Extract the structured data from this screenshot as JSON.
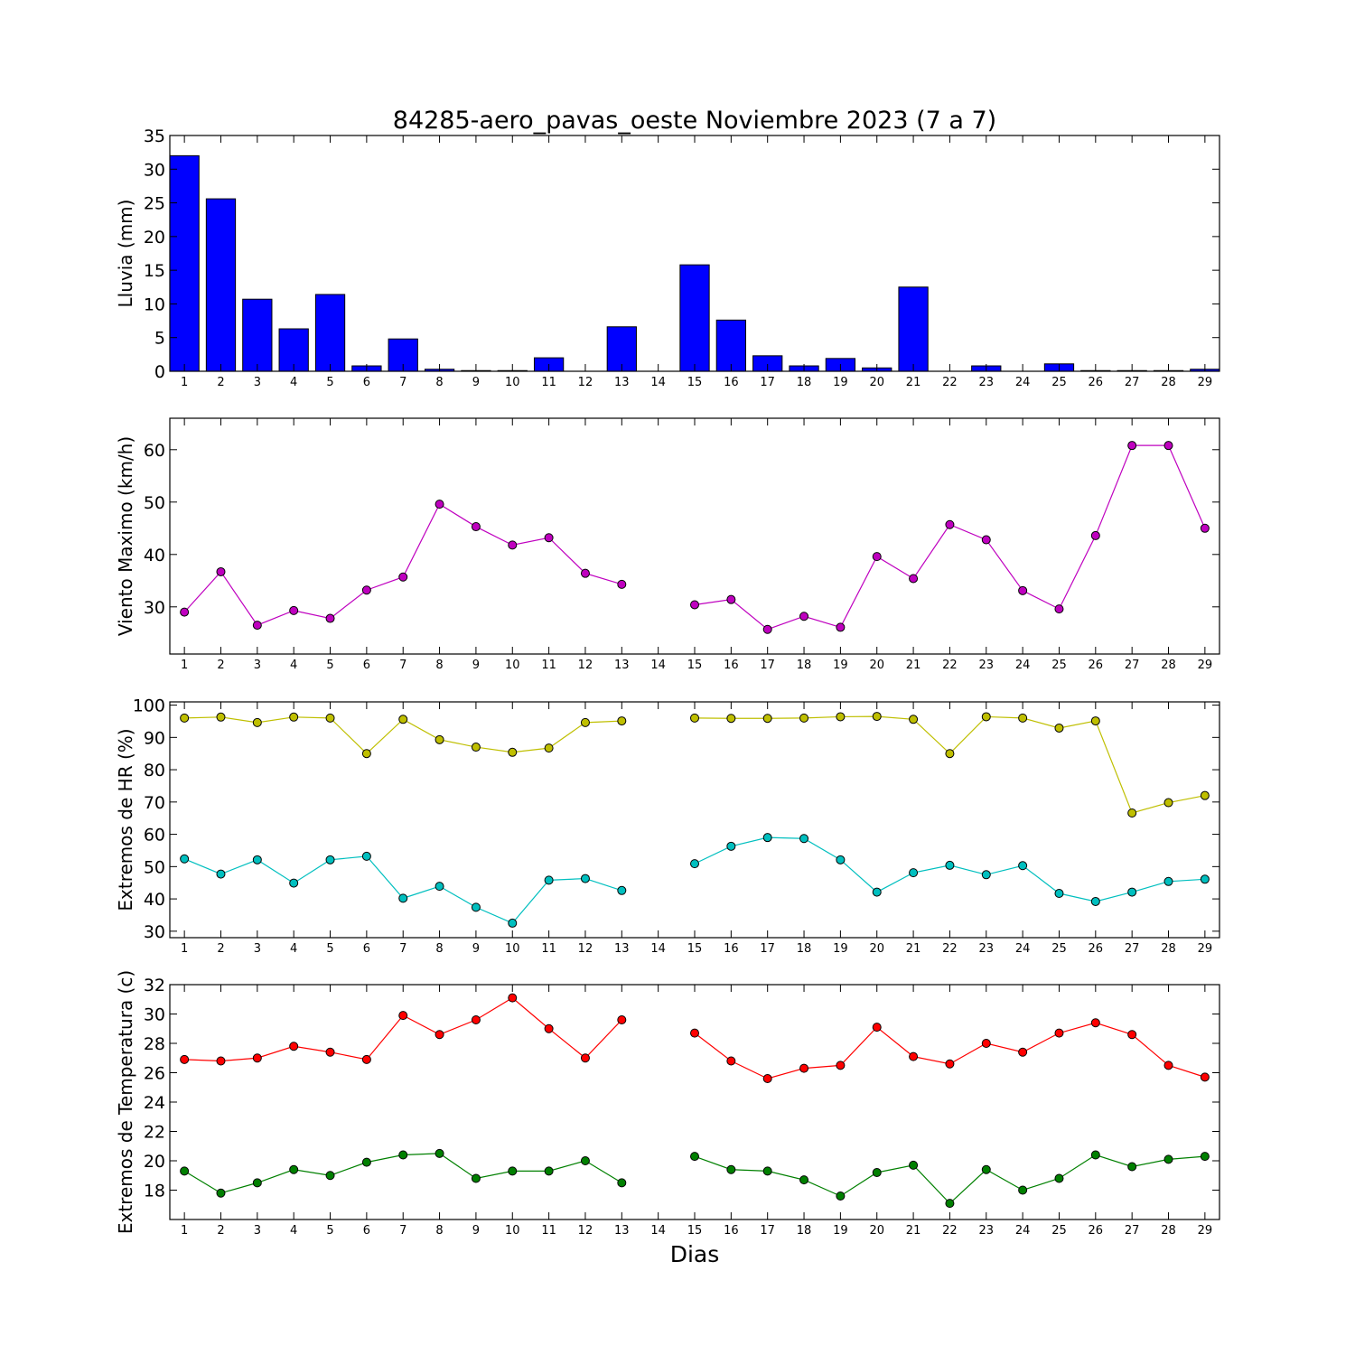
{
  "title": "84285-aero_pavas_oeste Noviembre 2023  (7 a 7)",
  "xlabel": "Dias",
  "days": [
    1,
    2,
    3,
    4,
    5,
    6,
    7,
    8,
    9,
    10,
    11,
    12,
    13,
    14,
    15,
    16,
    17,
    18,
    19,
    20,
    21,
    22,
    23,
    24,
    25,
    26,
    27,
    28,
    29
  ],
  "chart_data": [
    {
      "type": "bar",
      "ylabel": "Lluvia (mm)",
      "ylim": [
        0,
        35
      ],
      "yticks": [
        0,
        5,
        10,
        15,
        20,
        25,
        30,
        35
      ],
      "grid": false,
      "categories": [
        1,
        2,
        3,
        4,
        5,
        6,
        7,
        8,
        9,
        10,
        11,
        12,
        13,
        14,
        15,
        16,
        17,
        18,
        19,
        20,
        21,
        22,
        23,
        24,
        25,
        26,
        27,
        28,
        29
      ],
      "series": [
        {
          "color": "#0000ff",
          "values": [
            32.0,
            25.6,
            10.7,
            6.3,
            11.4,
            0.8,
            4.8,
            0.3,
            0.1,
            0.1,
            2.0,
            0.0,
            6.6,
            null,
            15.8,
            7.6,
            2.3,
            0.8,
            1.9,
            0.5,
            12.5,
            0.0,
            0.8,
            0.0,
            1.1,
            0.1,
            0.1,
            0.1,
            0.3
          ]
        }
      ]
    },
    {
      "type": "line",
      "ylabel": "Viento Maximo (km/h)",
      "ylim": [
        21,
        66
      ],
      "yticks": [
        30,
        40,
        50,
        60
      ],
      "grid": false,
      "x": [
        1,
        2,
        3,
        4,
        5,
        6,
        7,
        8,
        9,
        10,
        11,
        12,
        13,
        14,
        15,
        16,
        17,
        18,
        19,
        20,
        21,
        22,
        23,
        24,
        25,
        26,
        27,
        28,
        29
      ],
      "series": [
        {
          "color": "#bf00bf",
          "values": [
            29.0,
            36.7,
            26.5,
            29.3,
            27.8,
            33.2,
            35.7,
            49.6,
            45.3,
            41.8,
            43.2,
            36.4,
            34.3,
            null,
            30.4,
            31.4,
            25.7,
            28.2,
            26.1,
            39.6,
            35.4,
            45.7,
            42.8,
            33.1,
            29.6,
            43.6,
            60.8,
            60.8,
            45.0
          ]
        }
      ]
    },
    {
      "type": "line",
      "ylabel": "Extremos de HR (%)",
      "ylim": [
        28,
        101
      ],
      "yticks": [
        30,
        40,
        50,
        60,
        70,
        80,
        90,
        100
      ],
      "grid": false,
      "x": [
        1,
        2,
        3,
        4,
        5,
        6,
        7,
        8,
        9,
        10,
        11,
        12,
        13,
        14,
        15,
        16,
        17,
        18,
        19,
        20,
        21,
        22,
        23,
        24,
        25,
        26,
        27,
        28,
        29
      ],
      "series": [
        {
          "color": "#bfbf00",
          "values": [
            96.0,
            96.3,
            94.6,
            96.3,
            96.0,
            85.0,
            95.6,
            89.3,
            87.0,
            85.4,
            86.7,
            94.6,
            95.1,
            null,
            96.0,
            95.9,
            95.9,
            96.0,
            96.4,
            96.5,
            95.6,
            85.0,
            96.4,
            96.0,
            92.9,
            95.1,
            66.6,
            69.8,
            72.0
          ]
        },
        {
          "color": "#00bfbf",
          "values": [
            52.4,
            47.7,
            52.1,
            44.9,
            52.1,
            53.2,
            40.2,
            43.9,
            37.4,
            32.5,
            45.8,
            46.3,
            42.6,
            null,
            50.9,
            56.3,
            59.0,
            58.7,
            52.1,
            42.1,
            48.1,
            50.4,
            47.5,
            50.3,
            41.7,
            39.2,
            42.1,
            45.4,
            46.1
          ]
        }
      ]
    },
    {
      "type": "line",
      "ylabel": "Extremos de Temperatura (c)",
      "ylim": [
        16,
        32
      ],
      "yticks": [
        18,
        20,
        22,
        24,
        26,
        28,
        30,
        32
      ],
      "grid": false,
      "x": [
        1,
        2,
        3,
        4,
        5,
        6,
        7,
        8,
        9,
        10,
        11,
        12,
        13,
        14,
        15,
        16,
        17,
        18,
        19,
        20,
        21,
        22,
        23,
        24,
        25,
        26,
        27,
        28,
        29
      ],
      "series": [
        {
          "color": "#ff0000",
          "values": [
            26.9,
            26.8,
            27.0,
            27.8,
            27.4,
            26.9,
            29.9,
            28.6,
            29.6,
            31.1,
            29.0,
            27.0,
            29.6,
            null,
            28.7,
            26.8,
            25.6,
            26.3,
            26.5,
            29.1,
            27.1,
            26.6,
            28.0,
            27.4,
            28.7,
            29.4,
            28.6,
            26.5,
            25.7
          ]
        },
        {
          "color": "#008000",
          "values": [
            19.3,
            17.8,
            18.5,
            19.4,
            19.0,
            19.9,
            20.4,
            20.5,
            18.8,
            19.3,
            19.3,
            20.0,
            18.5,
            null,
            20.3,
            19.4,
            19.3,
            18.7,
            17.6,
            19.2,
            19.7,
            17.1,
            19.4,
            18.0,
            18.8,
            20.4,
            19.6,
            20.1,
            20.3
          ]
        }
      ]
    }
  ]
}
